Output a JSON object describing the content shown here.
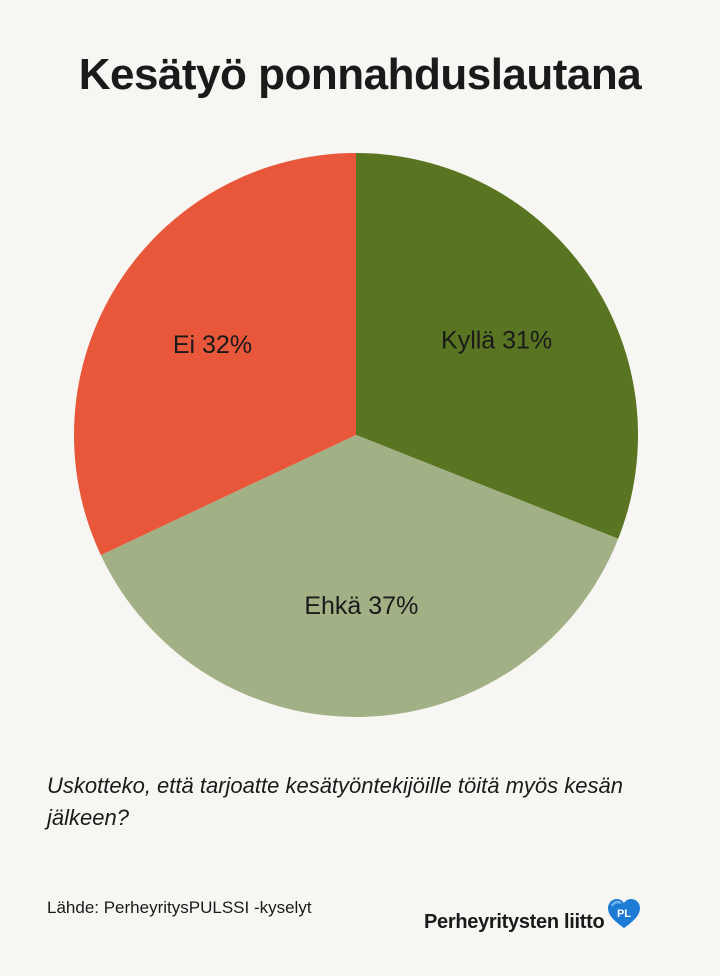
{
  "title": "Kesätyö ponnahduslautana",
  "question": "Uskotteko, että tarjoatte kesätyöntekijöille töitä myös kesän jälkeen?",
  "source": "Lähde: PerheyritysPULSSI -kyselyt",
  "brand": {
    "name": "Perheyritysten liitto",
    "logo_text": "PL",
    "logo_color": "#1e7bd4"
  },
  "chart_data": {
    "type": "pie",
    "start_angle_deg": 0,
    "direction": "clockwise",
    "slices": [
      {
        "label": "Kyllä 31%",
        "value": 31,
        "color": "#5a7522"
      },
      {
        "label": "Ehkä 37%",
        "value": 37,
        "color": "#a2b085"
      },
      {
        "label": "Ei 32%",
        "value": 32,
        "color": "#e85739"
      }
    ]
  }
}
